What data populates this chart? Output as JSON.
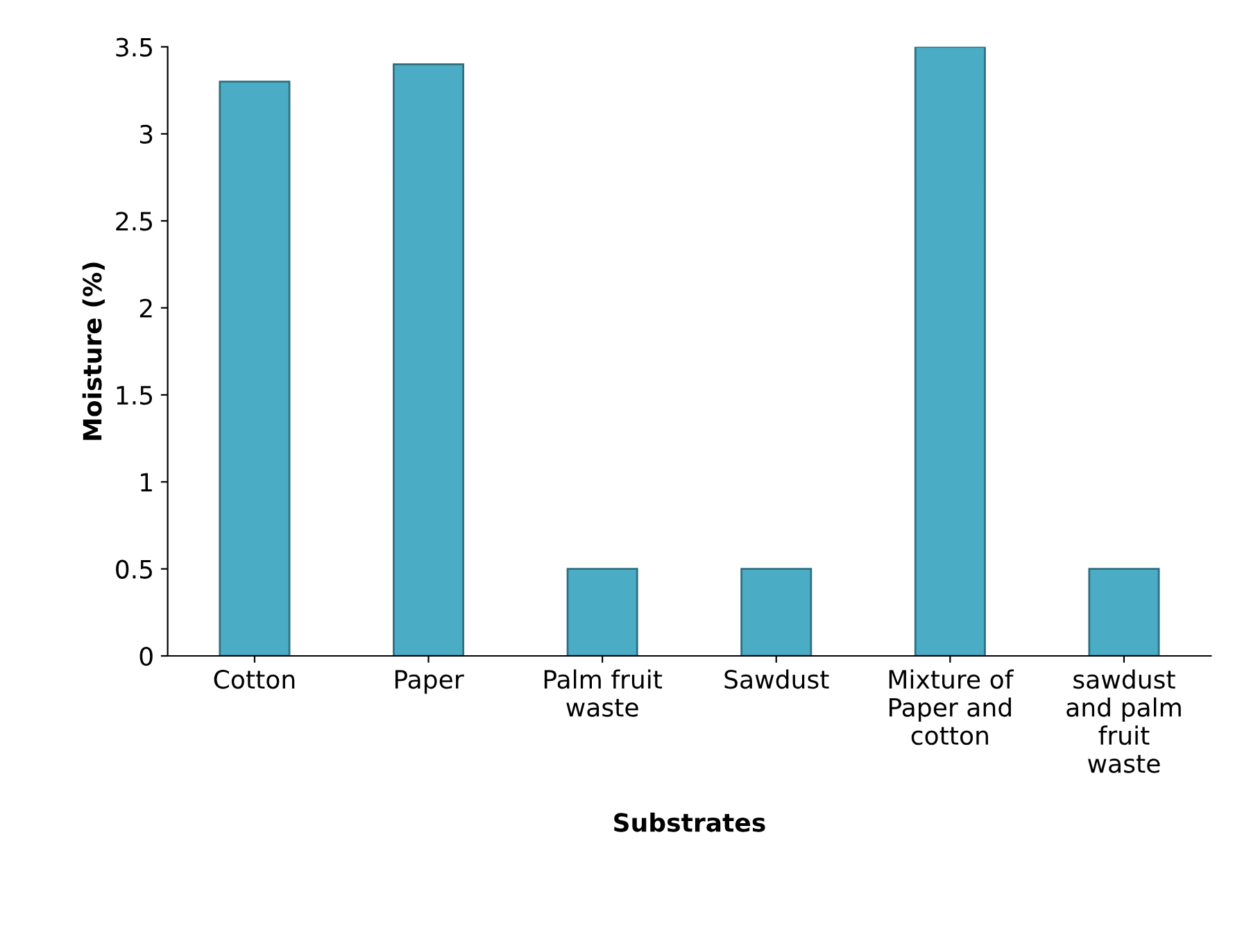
{
  "chart_data": {
    "type": "bar",
    "xlabel": "Substrates",
    "ylabel": "Moisture (%)",
    "categories": [
      "Cotton",
      "Paper",
      "Palm fruit\nwaste",
      "Sawdust",
      "Mixture of\nPaper and\ncotton",
      "sawdust\nand palm\nfruit\nwaste"
    ],
    "values": [
      3.3,
      3.4,
      0.5,
      0.5,
      3.5,
      0.5
    ],
    "color": "#4bacc6",
    "ylim": [
      0,
      3.5
    ],
    "yticks": [
      0,
      0.5,
      1,
      1.5,
      2,
      2.5,
      3,
      3.5
    ],
    "grid": false
  }
}
